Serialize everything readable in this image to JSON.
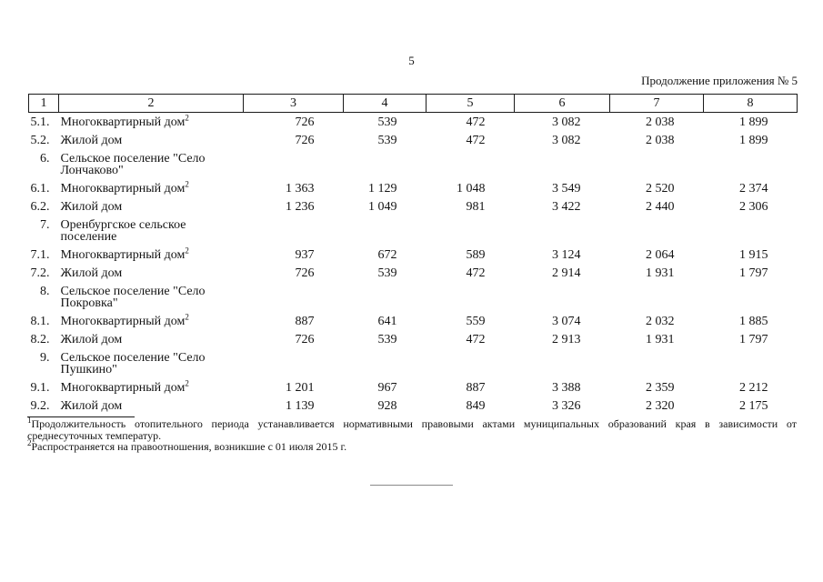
{
  "page": {
    "number": "5",
    "continuation": "Продолжение приложения № 5"
  },
  "table": {
    "header": [
      "1",
      "2",
      "3",
      "4",
      "5",
      "6",
      "7",
      "8"
    ],
    "rows": [
      {
        "num": "5.1.",
        "label": "Многоквартирный дом",
        "sup": "2",
        "values": [
          "726",
          "539",
          "472",
          "3 082",
          "2 038",
          "1 899"
        ]
      },
      {
        "num": "5.2.",
        "label": "Жилой дом",
        "sup": "",
        "values": [
          "726",
          "539",
          "472",
          "3 082",
          "2 038",
          "1 899"
        ]
      },
      {
        "num": "6.",
        "label": "Сельское поселение \"Село Лончаково\"",
        "sup": "",
        "values": [
          "",
          "",
          "",
          "",
          "",
          ""
        ]
      },
      {
        "num": "6.1.",
        "label": "Многоквартирный дом",
        "sup": "2",
        "values": [
          "1 363",
          "1 129",
          "1 048",
          "3 549",
          "2 520",
          "2 374"
        ]
      },
      {
        "num": "6.2.",
        "label": "Жилой дом",
        "sup": "",
        "values": [
          "1 236",
          "1 049",
          "981",
          "3 422",
          "2 440",
          "2 306"
        ]
      },
      {
        "num": "7.",
        "label": "Оренбургское сельское поселение",
        "sup": "",
        "values": [
          "",
          "",
          "",
          "",
          "",
          ""
        ]
      },
      {
        "num": "7.1.",
        "label": "Многоквартирный дом",
        "sup": "2",
        "values": [
          "937",
          "672",
          "589",
          "3 124",
          "2 064",
          "1 915"
        ]
      },
      {
        "num": "7.2.",
        "label": "Жилой дом",
        "sup": "",
        "values": [
          "726",
          "539",
          "472",
          "2 914",
          "1 931",
          "1 797"
        ]
      },
      {
        "num": "8.",
        "label": "Сельское поселение \"Село Покровка\"",
        "sup": "",
        "values": [
          "",
          "",
          "",
          "",
          "",
          ""
        ]
      },
      {
        "num": "8.1.",
        "label": "Многоквартирный дом",
        "sup": "2",
        "values": [
          "887",
          "641",
          "559",
          "3 074",
          "2 032",
          "1 885"
        ]
      },
      {
        "num": "8.2.",
        "label": "Жилой дом",
        "sup": "",
        "values": [
          "726",
          "539",
          "472",
          "2 913",
          "1 931",
          "1 797"
        ]
      },
      {
        "num": "9.",
        "label": "Сельское поселение \"Село Пушкино\"",
        "sup": "",
        "values": [
          "",
          "",
          "",
          "",
          "",
          ""
        ]
      },
      {
        "num": "9.1.",
        "label": "Многоквартирный дом",
        "sup": "2",
        "values": [
          "1 201",
          "967",
          "887",
          "3 388",
          "2 359",
          "2 212"
        ]
      },
      {
        "num": "9.2.",
        "label": "Жилой дом",
        "sup": "",
        "values": [
          "1 139",
          "928",
          "849",
          "3 326",
          "2 320",
          "2 175"
        ]
      }
    ]
  },
  "footnotes": [
    {
      "marker": "1",
      "text": "Продолжительность отопительного периода устанавливается нормативными правовыми актами муниципальных образований края в зависимости от среднесуточных температур."
    },
    {
      "marker": "2",
      "text": "Распространяется на правоотношения, возникшие с 01 июля 2015 г."
    }
  ]
}
